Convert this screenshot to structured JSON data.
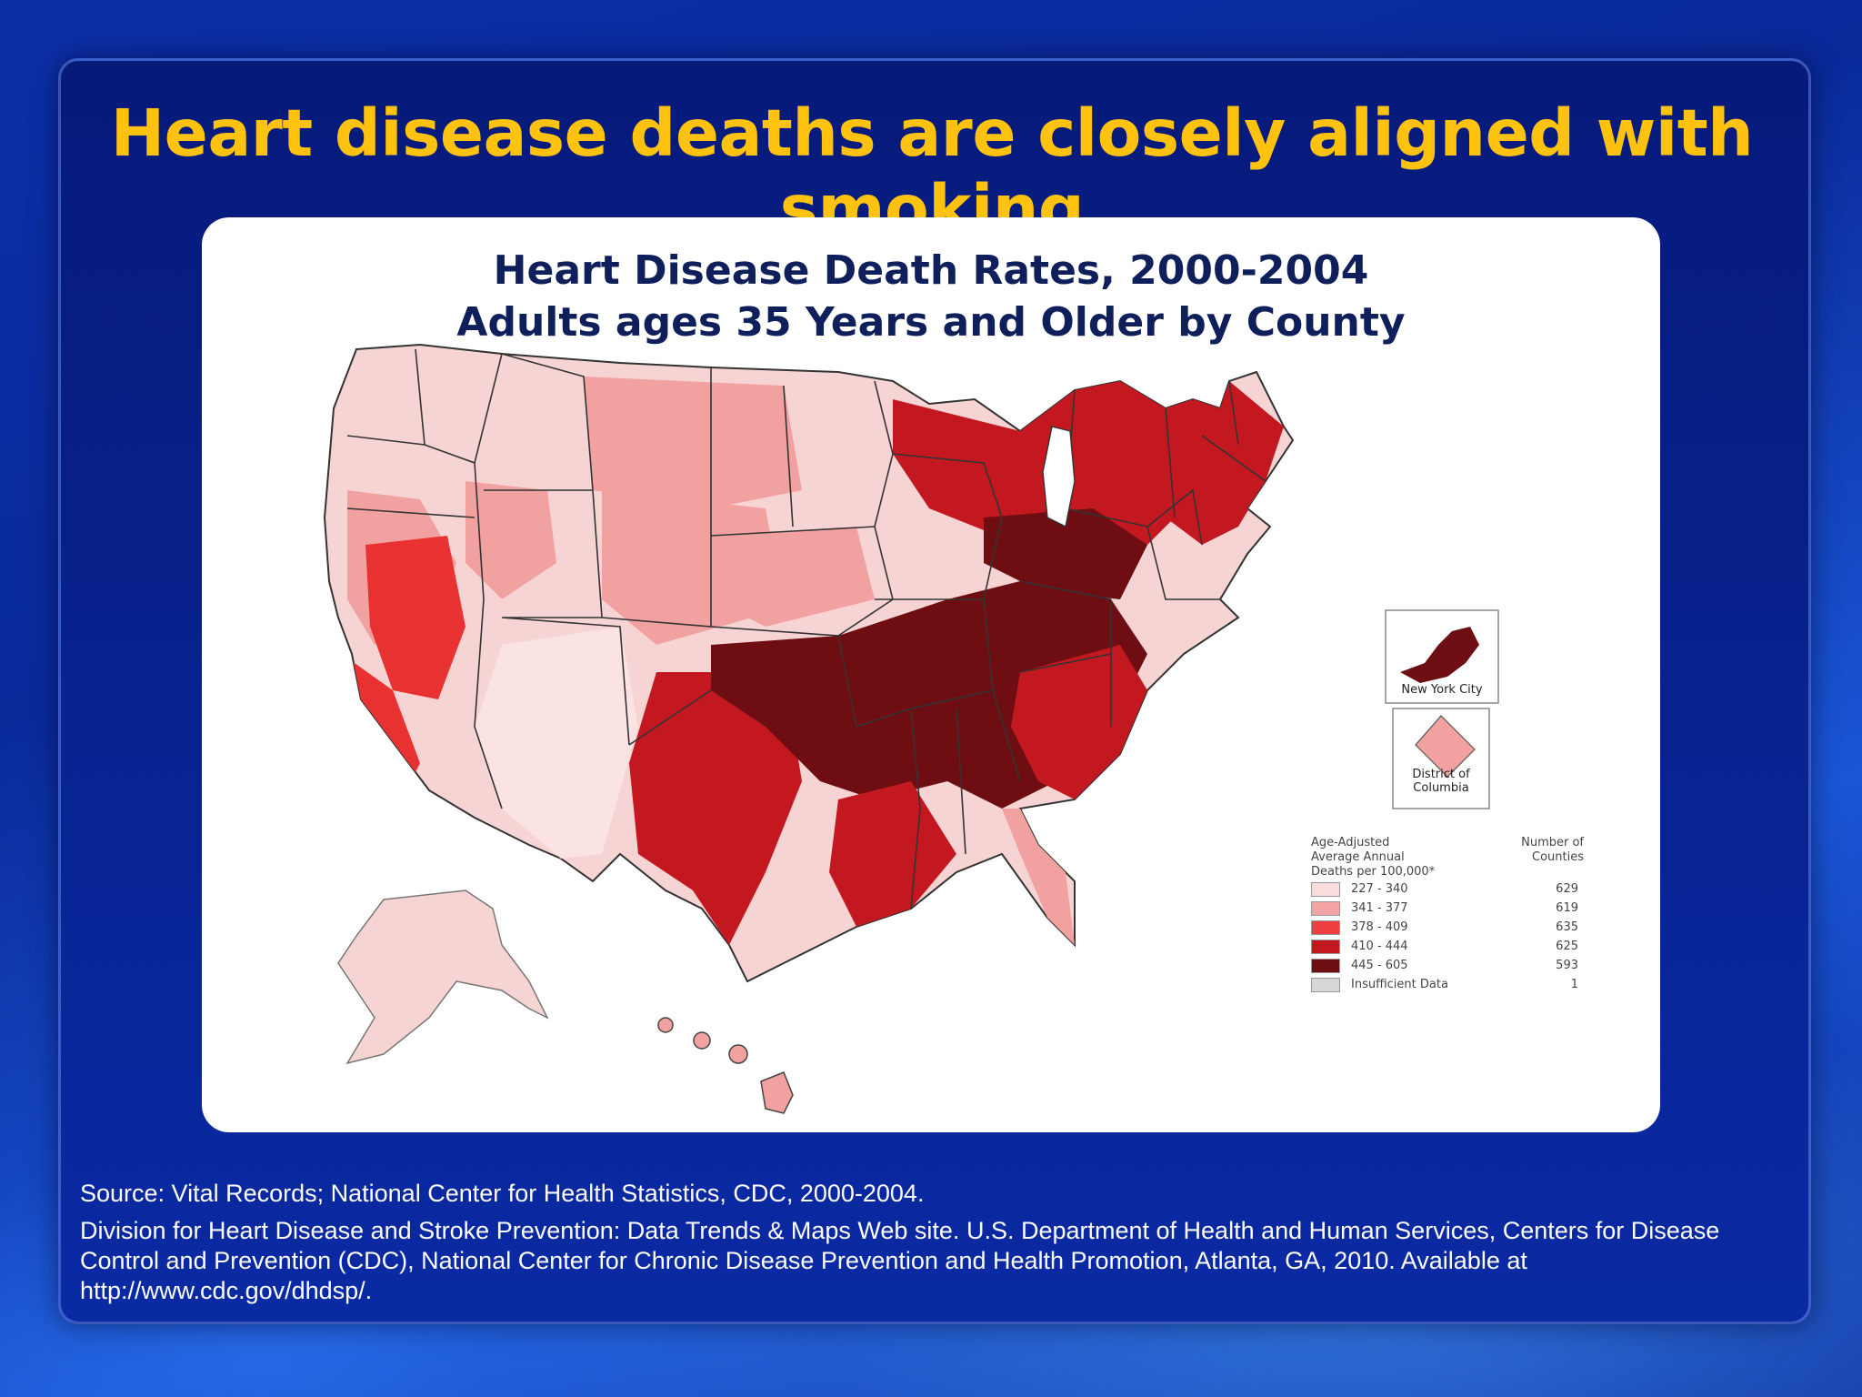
{
  "slide": {
    "headline": "Heart disease deaths are closely aligned with smoking"
  },
  "map": {
    "title_line1": "Heart Disease Death Rates, 2000-2004",
    "title_line2": "Adults ages 35 Years and Older by County",
    "inset_nyc": "New York City",
    "inset_dc_line1": "District of",
    "inset_dc_line2": "Columbia",
    "legend": {
      "heading_line1": "Age-Adjusted",
      "heading_line2": "Average Annual",
      "heading_line3": "Deaths per 100,000*",
      "count_heading_line1": "Number of",
      "count_heading_line2": "Counties",
      "classes": [
        {
          "range": "227 - 340",
          "count": "629",
          "color": "#f9dcdc"
        },
        {
          "range": "341 - 377",
          "count": "619",
          "color": "#f3a3a3"
        },
        {
          "range": "378 - 409",
          "count": "635",
          "color": "#ee3e3e"
        },
        {
          "range": "410 - 444",
          "count": "625",
          "color": "#c41820"
        },
        {
          "range": "445 - 605",
          "count": "593",
          "color": "#6e0e12"
        },
        {
          "range": "Insufficient Data",
          "count": "1",
          "color": "#d8d8d8"
        }
      ]
    }
  },
  "source": {
    "line1": "Source: Vital Records; National Center for Health Statistics, CDC, 2000-2004.",
    "line2": "Division for Heart Disease and Stroke Prevention: Data Trends & Maps Web site. U.S. Department of Health and Human Services, Centers for Disease Control and Prevention (CDC), National Center for Chronic Disease Prevention and Health Promotion, Atlanta, GA, 2010. Available at http://www.cdc.gov/dhdsp/."
  }
}
